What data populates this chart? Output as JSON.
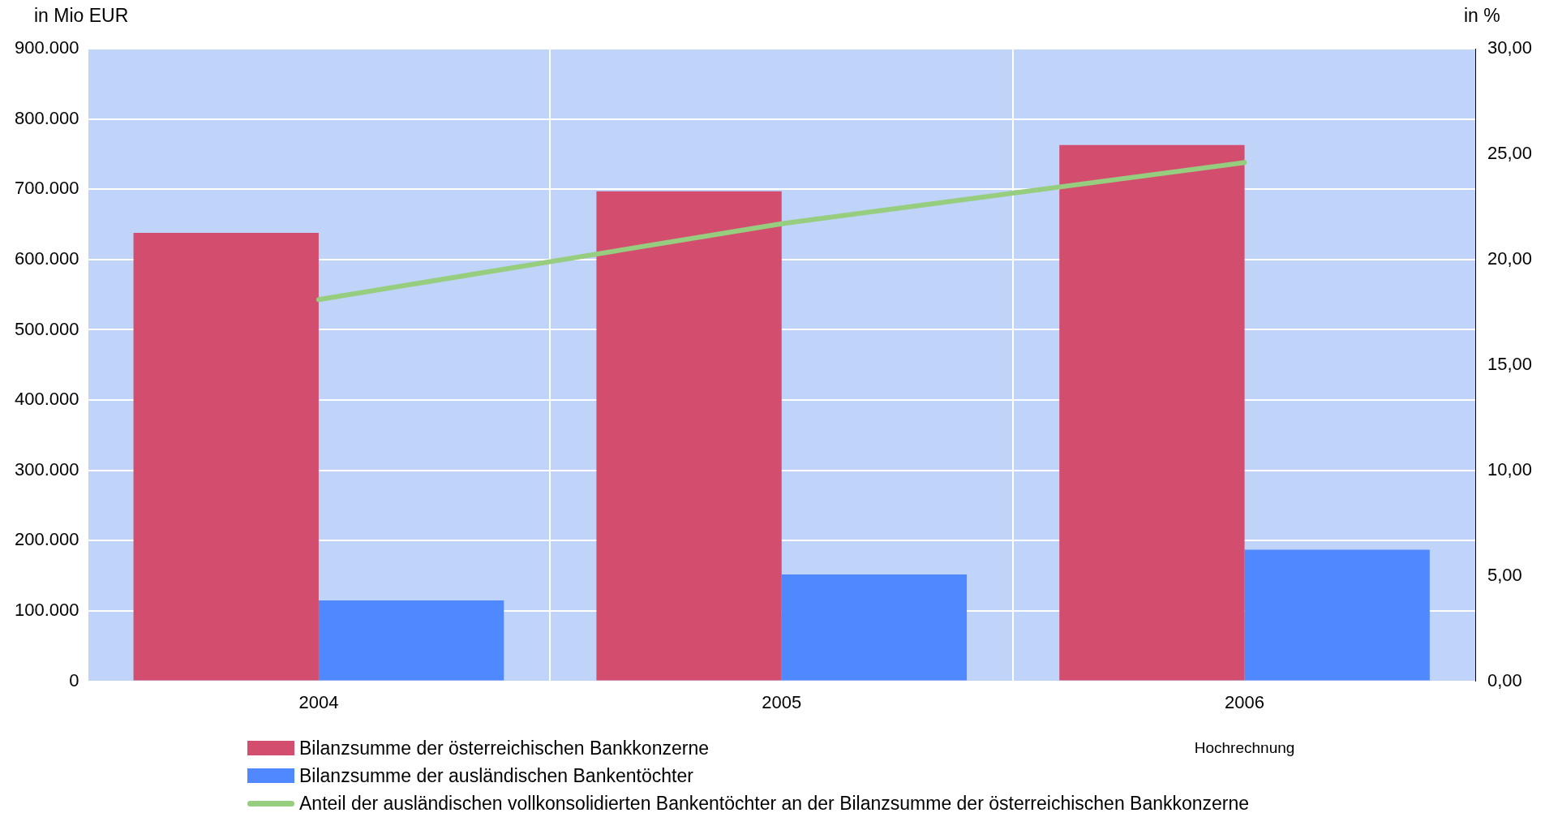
{
  "chart_data": {
    "type": "bar",
    "ylabel": "in Mio EUR",
    "y2label": "in %",
    "categories": [
      "2004",
      "2005",
      "2006"
    ],
    "series": [
      {
        "name": "Bilanzsumme der österreichischen Bankkonzerne",
        "color": "#d34d6e",
        "values": [
          638000,
          697000,
          763000
        ]
      },
      {
        "name": "Bilanzsumme der ausländischen Bankentöchter",
        "color": "#4f88ff",
        "values": [
          115000,
          152000,
          187000
        ]
      },
      {
        "name": "Anteil der ausländischen vollkonsolidierten Bankentöchter an der Bilanzsumme der österreichischen Bankkonzerne",
        "type": "line",
        "axis": "y2",
        "color": "#97cd7e",
        "values": [
          18.1,
          21.7,
          24.6
        ]
      }
    ],
    "ylim": [
      0,
      900000
    ],
    "yticks": [
      {
        "value": 0,
        "label": "0"
      },
      {
        "value": 100000,
        "label": "100.000"
      },
      {
        "value": 200000,
        "label": "200.000"
      },
      {
        "value": 300000,
        "label": "300.000"
      },
      {
        "value": 400000,
        "label": "400.000"
      },
      {
        "value": 500000,
        "label": "500.000"
      },
      {
        "value": 600000,
        "label": "600.000"
      },
      {
        "value": 700000,
        "label": "700.000"
      },
      {
        "value": 800000,
        "label": "800.000"
      },
      {
        "value": 900000,
        "label": "900.000"
      }
    ],
    "y2lim": [
      0,
      30
    ],
    "y2ticks": [
      {
        "value": 0,
        "label": "0,00"
      },
      {
        "value": 5,
        "label": "5,00"
      },
      {
        "value": 10,
        "label": "10,00"
      },
      {
        "value": 15,
        "label": "15,00"
      },
      {
        "value": 20,
        "label": "20,00"
      },
      {
        "value": 25,
        "label": "25,00"
      },
      {
        "value": 30,
        "label": "30,00"
      }
    ],
    "annotations": [
      "Hochrechnung"
    ],
    "grid": true,
    "legend": "bottom",
    "marker": "none",
    "line_style": "solid"
  }
}
